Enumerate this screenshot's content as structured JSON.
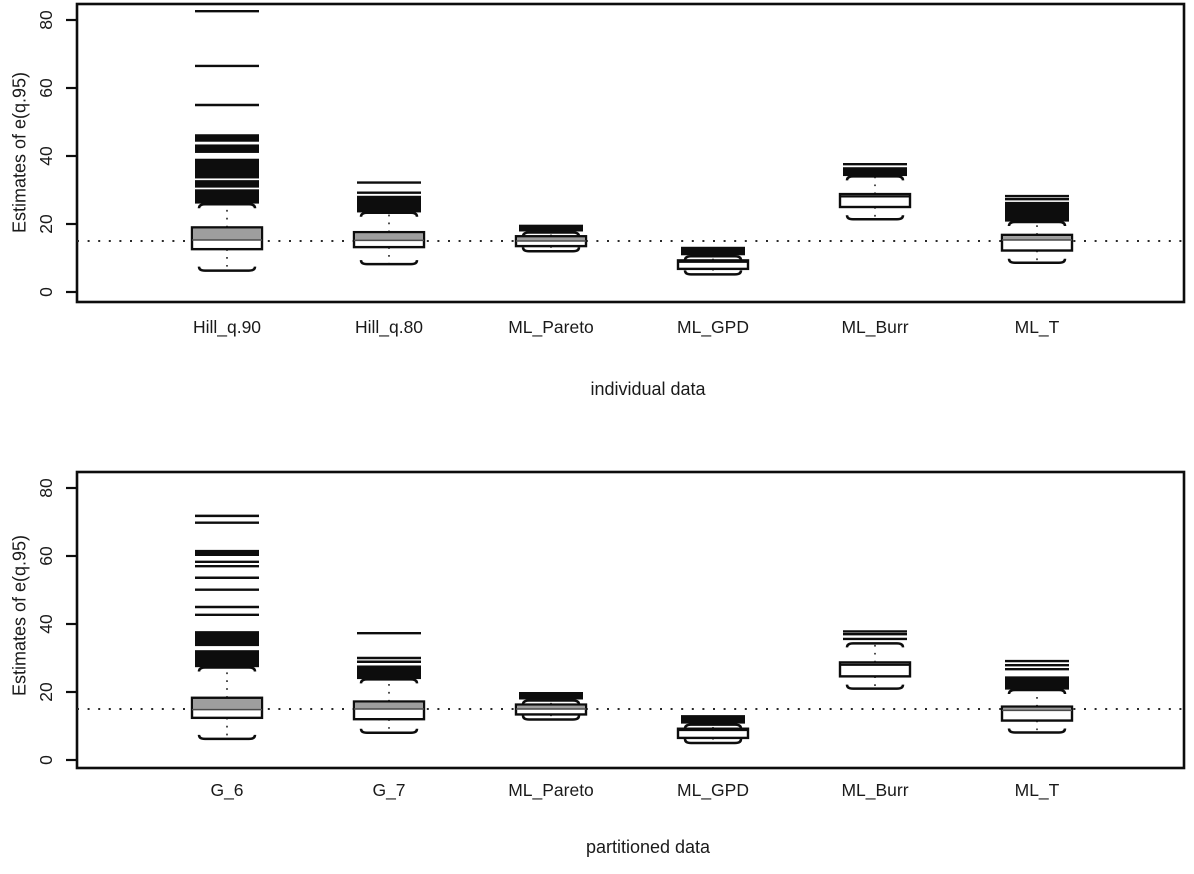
{
  "figure": {
    "background": "#ffffff",
    "ink_color": "#0d0d0d",
    "box_gray": "#9e9e9e",
    "reference_line_value": 15
  },
  "chart_data": [
    {
      "type": "boxplot",
      "title": "individual data",
      "ylabel": "Estimates of e(q.95)",
      "yticks": [
        0,
        20,
        40,
        60,
        80
      ],
      "ylim": [
        -3,
        85
      ],
      "grid": false,
      "ref_line": 15,
      "legend_position": "none",
      "categories": [
        "Hill_q.90",
        "Hill_q.80",
        "ML_Pareto",
        "ML_GPD",
        "ML_Burr",
        "ML_T"
      ],
      "boxes": [
        {
          "label": "Hill_q.90",
          "whisker_low": 6.3,
          "q1": 12.6,
          "median": 15.3,
          "q3": 19.0,
          "whisker_high": 25.8,
          "gray_fill": true,
          "outlier_lines": [
            82.6,
            66.5,
            55.0
          ],
          "outlier_bands": [
            [
              44.2,
              46.4
            ],
            [
              40.9,
              43.4
            ],
            [
              33.4,
              39.2
            ],
            [
              30.7,
              32.9
            ],
            [
              26.0,
              30.2
            ]
          ]
        },
        {
          "label": "Hill_q.80",
          "whisker_low": 8.2,
          "q1": 13.2,
          "median": 15.2,
          "q3": 17.6,
          "whisker_high": 23.3,
          "gray_fill": true,
          "outlier_lines": [
            32.2,
            29.2
          ],
          "outlier_bands": [
            [
              23.4,
              28.3
            ]
          ]
        },
        {
          "label": "ML_Pareto",
          "whisker_low": 12.0,
          "q1": 13.5,
          "median": 15.0,
          "q3": 16.4,
          "whisker_high": 17.5,
          "gray_fill": true,
          "outlier_lines": [],
          "outlier_bands": [
            [
              17.8,
              19.8
            ]
          ]
        },
        {
          "label": "ML_GPD",
          "whisker_low": 5.2,
          "q1": 6.8,
          "median": 8.9,
          "q3": 9.3,
          "whisker_high": 10.5,
          "gray_fill": false,
          "outlier_lines": [],
          "outlier_bands": [
            [
              10.8,
              13.3
            ]
          ]
        },
        {
          "label": "ML_Burr",
          "whisker_low": 21.4,
          "q1": 25.0,
          "median": 28.1,
          "q3": 28.8,
          "whisker_high": 34.0,
          "gray_fill": false,
          "outlier_lines": [
            37.6
          ],
          "outlier_bands": [
            [
              34.1,
              36.7
            ]
          ]
        },
        {
          "label": "ML_T",
          "whisker_low": 8.6,
          "q1": 12.2,
          "median": 15.3,
          "q3": 16.8,
          "whisker_high": 20.6,
          "gray_fill": true,
          "outlier_lines": [
            28.2,
            27.3
          ],
          "outlier_bands": [
            [
              20.7,
              26.5
            ]
          ]
        }
      ]
    },
    {
      "type": "boxplot",
      "title": "partitioned data",
      "ylabel": "Estimates of e(q.95)",
      "yticks": [
        0,
        20,
        40,
        60,
        80
      ],
      "ylim": [
        -3,
        85
      ],
      "grid": false,
      "ref_line": 15,
      "legend_position": "none",
      "categories": [
        "G_6",
        "G_7",
        "ML_Pareto",
        "ML_GPD",
        "ML_Burr",
        "ML_T"
      ],
      "boxes": [
        {
          "label": "G_6",
          "whisker_low": 6.2,
          "q1": 12.4,
          "median": 14.8,
          "q3": 18.3,
          "whisker_high": 27.2,
          "gray_fill": true,
          "outlier_lines": [
            71.8,
            69.8,
            58.3,
            57.0,
            53.6,
            50.1,
            45.0,
            42.7
          ],
          "outlier_bands": [
            [
              60.0,
              61.8
            ],
            [
              33.5,
              37.9
            ],
            [
              27.3,
              32.3
            ]
          ]
        },
        {
          "label": "G_7",
          "whisker_low": 8.0,
          "q1": 12.0,
          "median": 15.0,
          "q3": 17.2,
          "whisker_high": 23.7,
          "gray_fill": true,
          "outlier_lines": [
            37.3,
            30.0,
            28.9
          ],
          "outlier_bands": [
            [
              23.8,
              27.8
            ]
          ]
        },
        {
          "label": "ML_Pareto",
          "whisker_low": 11.9,
          "q1": 13.4,
          "median": 15.0,
          "q3": 16.3,
          "whisker_high": 17.5,
          "gray_fill": true,
          "outlier_lines": [],
          "outlier_bands": [
            [
              17.8,
              20.0
            ]
          ]
        },
        {
          "label": "ML_GPD",
          "whisker_low": 5.0,
          "q1": 6.5,
          "median": 8.8,
          "q3": 9.2,
          "whisker_high": 10.4,
          "gray_fill": false,
          "outlier_lines": [],
          "outlier_bands": [
            [
              10.7,
              13.2
            ]
          ]
        },
        {
          "label": "ML_Burr",
          "whisker_low": 21.0,
          "q1": 24.6,
          "median": 28.0,
          "q3": 28.7,
          "whisker_high": 34.3,
          "gray_fill": false,
          "outlier_lines": [
            37.8,
            37.0,
            35.6
          ],
          "outlier_bands": []
        },
        {
          "label": "ML_T",
          "whisker_low": 8.1,
          "q1": 11.6,
          "median": 14.6,
          "q3": 15.7,
          "whisker_high": 20.6,
          "gray_fill": true,
          "outlier_lines": [
            29.1,
            27.9,
            26.7
          ],
          "outlier_bands": [
            [
              20.7,
              24.6
            ]
          ]
        }
      ]
    }
  ]
}
